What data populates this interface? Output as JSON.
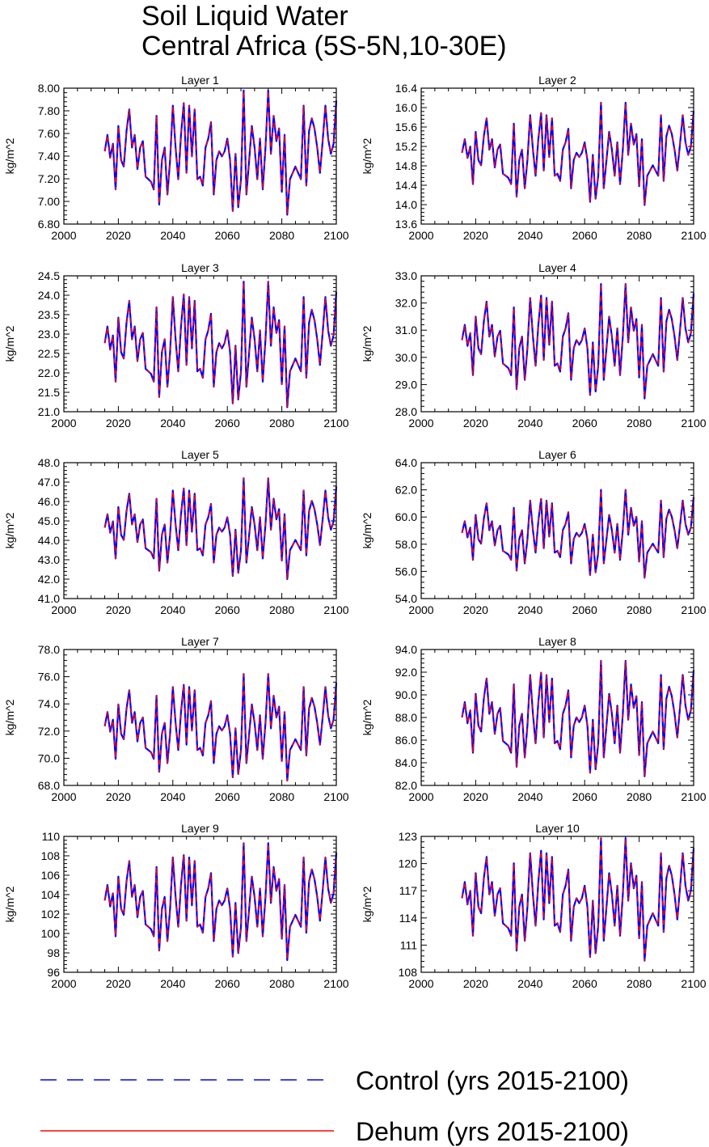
{
  "figure": {
    "title_line1": "Soil Liquid Water",
    "title_line2": "Central Africa (5S-5N,10-30E)"
  },
  "legend": [
    {
      "name": "Control (yrs 2015-2100)",
      "color": "#0000ff",
      "style": "dashed"
    },
    {
      "name": "Dehum (yrs 2015-2100)",
      "color": "#ff0000",
      "style": "solid"
    }
  ],
  "colors": {
    "control": "#0000ff",
    "dehum": "#ff0000"
  },
  "base_series": {
    "x_start": 2015,
    "x_end": 2100,
    "values": [
      0.52,
      0.65,
      0.47,
      0.58,
      0.22,
      0.72,
      0.45,
      0.4,
      0.68,
      0.85,
      0.55,
      0.65,
      0.38,
      0.55,
      0.6,
      0.32,
      0.3,
      0.28,
      0.22,
      0.8,
      0.1,
      0.45,
      0.55,
      0.18,
      0.45,
      0.88,
      0.55,
      0.3,
      0.65,
      0.9,
      0.35,
      0.88,
      0.48,
      0.85,
      0.3,
      0.32,
      0.25,
      0.55,
      0.62,
      0.75,
      0.18,
      0.45,
      0.52,
      0.48,
      0.52,
      0.62,
      0.45,
      0.05,
      0.5,
      0.08,
      0.3,
      1.0,
      0.18,
      0.45,
      0.72,
      0.55,
      0.3,
      0.62,
      0.22,
      0.55,
      1.0,
      0.5,
      0.8,
      0.6,
      0.7,
      0.2,
      0.65,
      0.02,
      0.3,
      0.35,
      0.4,
      0.35,
      0.3,
      0.88,
      0.25,
      0.68,
      0.78,
      0.7,
      0.55,
      0.35,
      0.6,
      0.88,
      0.62,
      0.5,
      0.58,
      0.92
    ]
  },
  "chart_data": [
    {
      "type": "line",
      "title": "Layer 1",
      "ylabel": "kg/m^2",
      "xlim": [
        2000,
        2100
      ],
      "ylim": [
        6.8,
        8.0
      ],
      "yticks": [
        "6.80",
        "7.00",
        "7.20",
        "7.40",
        "7.60",
        "7.80",
        "8.00"
      ],
      "xticks": [
        "2000",
        "2020",
        "2040",
        "2060",
        "2080",
        "2100"
      ],
      "series": [
        {
          "name": "Control (yrs 2015-2100)",
          "data_min": 6.86,
          "data_max": 7.98
        },
        {
          "name": "Dehum (yrs 2015-2100)",
          "data_min": 6.86,
          "data_max": 7.98
        }
      ]
    },
    {
      "type": "line",
      "title": "Layer 2",
      "ylabel": "kg/m^2",
      "xlim": [
        2000,
        2100
      ],
      "ylim": [
        13.6,
        16.4
      ],
      "yticks": [
        "13.6",
        "14.0",
        "14.4",
        "14.8",
        "15.2",
        "15.6",
        "16.0",
        "16.4"
      ],
      "xticks": [
        "2000",
        "2020",
        "2040",
        "2060",
        "2080",
        "2100"
      ],
      "series": [
        {
          "name": "Control (yrs 2015-2100)",
          "data_min": 13.95,
          "data_max": 16.1
        },
        {
          "name": "Dehum (yrs 2015-2100)",
          "data_min": 13.95,
          "data_max": 16.1
        }
      ]
    },
    {
      "type": "line",
      "title": "Layer 3",
      "ylabel": "kg/m^2",
      "xlim": [
        2000,
        2100
      ],
      "ylim": [
        21.0,
        24.5
      ],
      "yticks": [
        "21.0",
        "21.5",
        "22.0",
        "22.5",
        "23.0",
        "23.5",
        "24.0",
        "24.5"
      ],
      "xticks": [
        "2000",
        "2020",
        "2040",
        "2060",
        "2080",
        "2100"
      ],
      "series": [
        {
          "name": "Control (yrs 2015-2100)",
          "data_min": 21.05,
          "data_max": 24.35
        },
        {
          "name": "Dehum (yrs 2015-2100)",
          "data_min": 21.05,
          "data_max": 24.35
        }
      ]
    },
    {
      "type": "line",
      "title": "Layer 4",
      "ylabel": "kg/m^2",
      "xlim": [
        2000,
        2100
      ],
      "ylim": [
        28.0,
        33.0
      ],
      "yticks": [
        "28.0",
        "29.0",
        "30.0",
        "31.0",
        "32.0",
        "33.0"
      ],
      "xticks": [
        "2000",
        "2020",
        "2040",
        "2060",
        "2080",
        "2100"
      ],
      "series": [
        {
          "name": "Control (yrs 2015-2100)",
          "data_min": 28.4,
          "data_max": 32.7
        },
        {
          "name": "Dehum (yrs 2015-2100)",
          "data_min": 28.4,
          "data_max": 32.7
        }
      ]
    },
    {
      "type": "line",
      "title": "Layer 5",
      "ylabel": "kg/m^2",
      "xlim": [
        2000,
        2100
      ],
      "ylim": [
        41.0,
        48.0
      ],
      "yticks": [
        "41.0",
        "42.0",
        "43.0",
        "44.0",
        "45.0",
        "46.0",
        "47.0",
        "48.0"
      ],
      "xticks": [
        "2000",
        "2020",
        "2040",
        "2060",
        "2080",
        "2100"
      ],
      "series": [
        {
          "name": "Control (yrs 2015-2100)",
          "data_min": 41.9,
          "data_max": 47.2
        },
        {
          "name": "Dehum (yrs 2015-2100)",
          "data_min": 41.9,
          "data_max": 47.2
        }
      ]
    },
    {
      "type": "line",
      "title": "Layer 6",
      "ylabel": "kg/m^2",
      "xlim": [
        2000,
        2100
      ],
      "ylim": [
        54.0,
        64.0
      ],
      "yticks": [
        "54.0",
        "56.0",
        "58.0",
        "60.0",
        "62.0",
        "64.0"
      ],
      "xticks": [
        "2000",
        "2020",
        "2040",
        "2060",
        "2080",
        "2100"
      ],
      "series": [
        {
          "name": "Control (yrs 2015-2100)",
          "data_min": 55.4,
          "data_max": 62.0
        },
        {
          "name": "Dehum (yrs 2015-2100)",
          "data_min": 55.4,
          "data_max": 62.0
        }
      ]
    },
    {
      "type": "line",
      "title": "Layer 7",
      "ylabel": "kg/m^2",
      "xlim": [
        2000,
        2100
      ],
      "ylim": [
        68.0,
        78.0
      ],
      "yticks": [
        "68.0",
        "70.0",
        "72.0",
        "74.0",
        "76.0",
        "78.0"
      ],
      "xticks": [
        "2000",
        "2020",
        "2040",
        "2060",
        "2080",
        "2100"
      ],
      "series": [
        {
          "name": "Control (yrs 2015-2100)",
          "data_min": 68.2,
          "data_max": 76.2
        },
        {
          "name": "Dehum (yrs 2015-2100)",
          "data_min": 68.2,
          "data_max": 76.2
        }
      ]
    },
    {
      "type": "line",
      "title": "Layer 8",
      "ylabel": "kg/m^2",
      "xlim": [
        2000,
        2100
      ],
      "ylim": [
        82.0,
        94.0
      ],
      "yticks": [
        "82.0",
        "84.0",
        "86.0",
        "88.0",
        "90.0",
        "92.0",
        "94.0"
      ],
      "xticks": [
        "2000",
        "2020",
        "2040",
        "2060",
        "2080",
        "2100"
      ],
      "series": [
        {
          "name": "Control (yrs 2015-2100)",
          "data_min": 82.6,
          "data_max": 93.0
        },
        {
          "name": "Dehum (yrs 2015-2100)",
          "data_min": 82.6,
          "data_max": 93.0
        }
      ]
    },
    {
      "type": "line",
      "title": "Layer 9",
      "ylabel": "kg/m^2",
      "xlim": [
        2000,
        2100
      ],
      "ylim": [
        96,
        110
      ],
      "yticks": [
        "96",
        "98",
        "100",
        "102",
        "104",
        "106",
        "108",
        "110"
      ],
      "xticks": [
        "2000",
        "2020",
        "2040",
        "2060",
        "2080",
        "2100"
      ],
      "series": [
        {
          "name": "Control (yrs 2015-2100)",
          "data_min": 97.0,
          "data_max": 109.3
        },
        {
          "name": "Dehum (yrs 2015-2100)",
          "data_min": 97.0,
          "data_max": 109.3
        }
      ]
    },
    {
      "type": "line",
      "title": "Layer 10",
      "ylabel": "kg/m^2",
      "xlim": [
        2000,
        2100
      ],
      "ylim": [
        108,
        123
      ],
      "yticks": [
        "108",
        "111",
        "114",
        "117",
        "120",
        "123"
      ],
      "xticks": [
        "2000",
        "2020",
        "2040",
        "2060",
        "2080",
        "2100"
      ],
      "series": [
        {
          "name": "Control (yrs 2015-2100)",
          "data_min": 109.0,
          "data_max": 122.8
        },
        {
          "name": "Dehum (yrs 2015-2100)",
          "data_min": 109.0,
          "data_max": 122.8
        }
      ]
    }
  ]
}
